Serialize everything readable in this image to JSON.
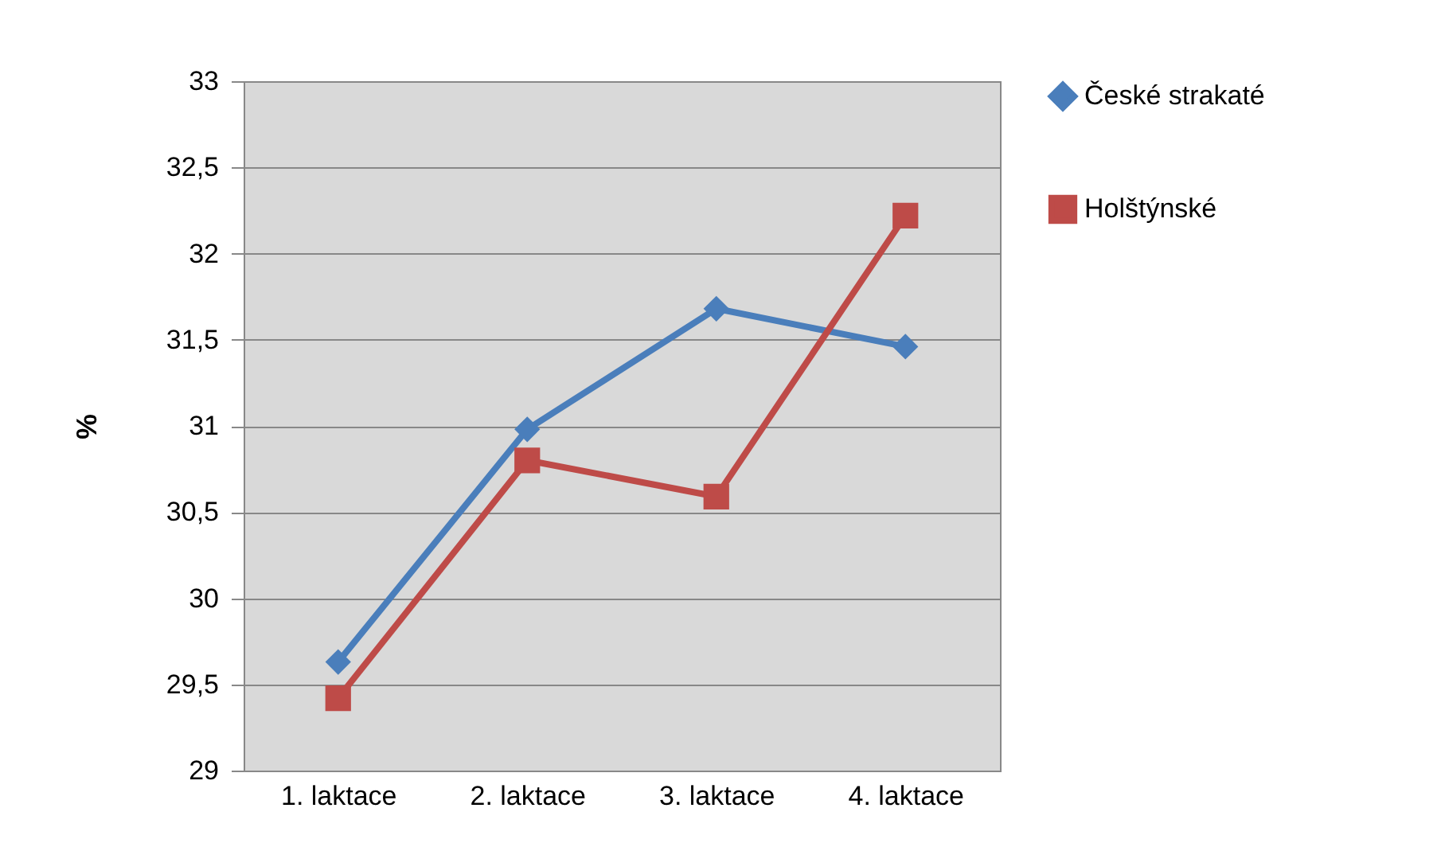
{
  "chart_data": {
    "type": "line",
    "ylabel": "%",
    "categories": [
      "1. laktace",
      "2. laktace",
      "3. laktace",
      "4. laktace"
    ],
    "series": [
      {
        "name": "České strakaté",
        "color": "#4a7ebb",
        "marker": "diamond",
        "values": [
          29.63,
          30.98,
          31.68,
          31.46
        ]
      },
      {
        "name": "Holštýnské",
        "color": "#be4b48",
        "marker": "square",
        "values": [
          29.42,
          30.8,
          30.59,
          32.22
        ]
      }
    ],
    "ylim": [
      29,
      33
    ],
    "yticks": [
      29,
      {
        "value": 29.5,
        "label": "29,5"
      },
      30,
      {
        "value": 30.5,
        "label": "30,5"
      },
      31,
      {
        "value": 31.5,
        "label": "31,5"
      },
      32,
      {
        "value": 32.5,
        "label": "32,5"
      },
      33
    ],
    "grid": "y",
    "legend": "right"
  }
}
